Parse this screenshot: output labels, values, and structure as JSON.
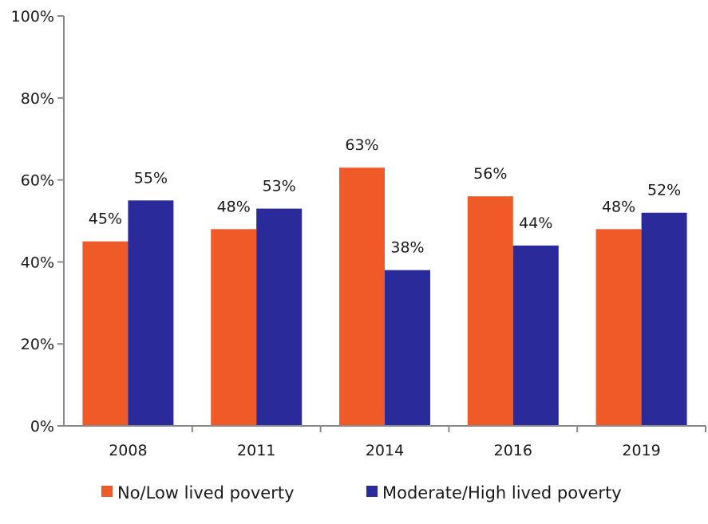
{
  "chart_data": {
    "type": "bar",
    "categories": [
      "2008",
      "2011",
      "2014",
      "2016",
      "2019"
    ],
    "series": [
      {
        "name": "No/Low lived poverty",
        "color": "#f05a28",
        "values": [
          45,
          48,
          63,
          56,
          48
        ],
        "labels": [
          "45%",
          "48%",
          "63%",
          "56%",
          "48%"
        ]
      },
      {
        "name": "Moderate/High lived poverty",
        "color": "#2b2a9b",
        "values": [
          55,
          53,
          38,
          44,
          52
        ],
        "labels": [
          "55%",
          "53%",
          "38%",
          "44%",
          "52%"
        ]
      }
    ],
    "ylim": [
      0,
      100
    ],
    "yticks": [
      0,
      20,
      40,
      60,
      80,
      100
    ],
    "ytick_labels": [
      "0%",
      "20%",
      "40%",
      "60%",
      "80%",
      "100%"
    ],
    "grid": false,
    "legend_position": "bottom"
  }
}
